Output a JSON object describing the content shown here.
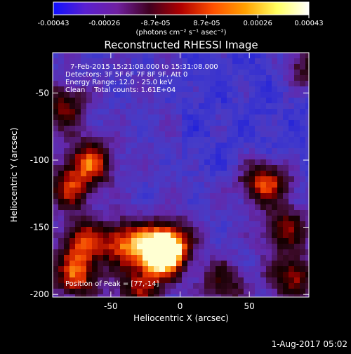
{
  "colorbar": {
    "ticks": [
      "-0.00043",
      "-0.00026",
      "-8.7e-05",
      "8.7e-05",
      "0.00026",
      "0.00043"
    ],
    "unit_label": "(photons cm⁻² s⁻¹ asec⁻²)",
    "colors": [
      "#1010ff",
      "#5a20d0",
      "#7020a0",
      "#400020",
      "#b00000",
      "#ff5000",
      "#ffa000",
      "#ffff60",
      "#ffffff"
    ]
  },
  "title": "Reconstructed RHESSI Image",
  "annotations": {
    "time_range": "7-Feb-2015 15:21:08.000 to 15:31:08.000",
    "detectors": "Detectors: 3F 5F 6F 7F 8F 9F, Att 0",
    "energy": "Energy Range: 12.0 - 25.0 keV",
    "clean": "Clean    Total counts: 1.61E+04",
    "peak": "Position of Peak = [77,-14]"
  },
  "axes": {
    "xlabel": "Heliocentric X (arcsec)",
    "ylabel": "Heliocentric Y (arcsec)",
    "xticks": [
      "-50",
      "0",
      "50"
    ],
    "yticks": [
      "-50",
      "-100",
      "-150",
      "-200"
    ]
  },
  "footer_date": "1-Aug-2017 05:02",
  "chart_data": {
    "type": "heatmap",
    "title": "Reconstructed RHESSI Image",
    "xlabel": "Heliocentric X (arcsec)",
    "ylabel": "Heliocentric Y (arcsec)",
    "x_tick_values": [
      -50,
      0,
      50
    ],
    "y_tick_values": [
      -50,
      -100,
      -150,
      -200
    ],
    "xlim": [
      -92,
      93
    ],
    "ylim": [
      -202,
      -20
    ],
    "colorbar_range": [
      -0.00043,
      0.00043
    ],
    "peak_position": [
      77,
      -14
    ],
    "bright_regions": [
      {
        "x": -15,
        "y": -170,
        "level": 1.0
      },
      {
        "x": -10,
        "y": -160,
        "level": 0.85
      },
      {
        "x": -40,
        "y": -160,
        "level": 0.75
      },
      {
        "x": -70,
        "y": -160,
        "level": 0.7
      },
      {
        "x": -80,
        "y": -120,
        "level": 0.6
      },
      {
        "x": -65,
        "y": -100,
        "level": 0.7
      },
      {
        "x": -85,
        "y": -60,
        "level": 0.55
      },
      {
        "x": 60,
        "y": -115,
        "level": 0.75
      },
      {
        "x": 75,
        "y": -150,
        "level": 0.55
      },
      {
        "x": 80,
        "y": -185,
        "level": 0.6
      },
      {
        "x": 30,
        "y": -190,
        "level": 0.45
      },
      {
        "x": -30,
        "y": -195,
        "level": 0.55
      },
      {
        "x": -75,
        "y": -185,
        "level": 0.7
      },
      {
        "x": 90,
        "y": -30,
        "level": 0.45
      }
    ]
  }
}
